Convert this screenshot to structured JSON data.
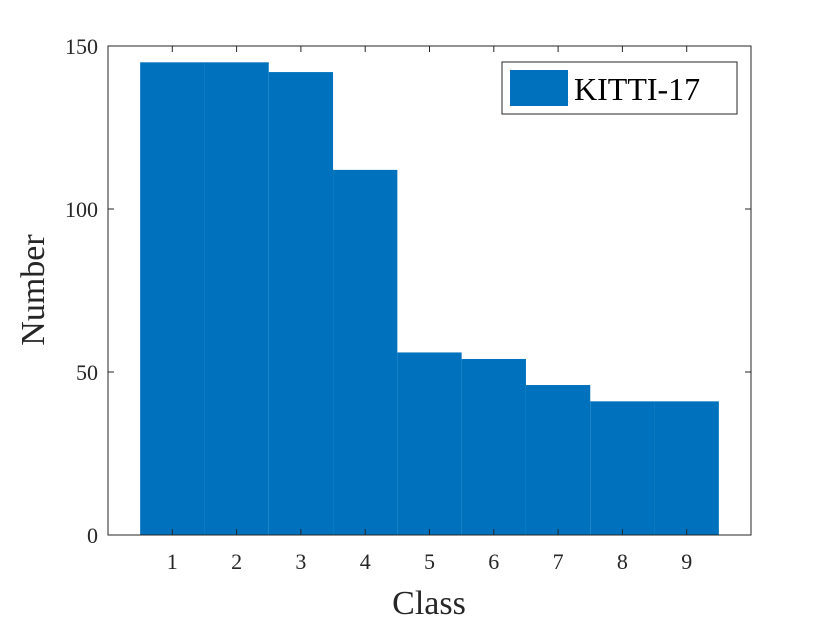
{
  "chart_data": {
    "type": "bar",
    "categories": [
      "1",
      "2",
      "3",
      "4",
      "5",
      "6",
      "7",
      "8",
      "9"
    ],
    "series": [
      {
        "name": "KITTI-17",
        "values": [
          145,
          145,
          142,
          112,
          56,
          54,
          46,
          41,
          41
        ]
      }
    ],
    "xlabel": "Class",
    "ylabel": "Number",
    "ylim": [
      0,
      150
    ],
    "yticks": [
      "0",
      "50",
      "100",
      "150"
    ],
    "xlim": [
      0,
      10
    ],
    "grid": false,
    "legend_position": "top-right",
    "bar_color": "#0072BD"
  }
}
